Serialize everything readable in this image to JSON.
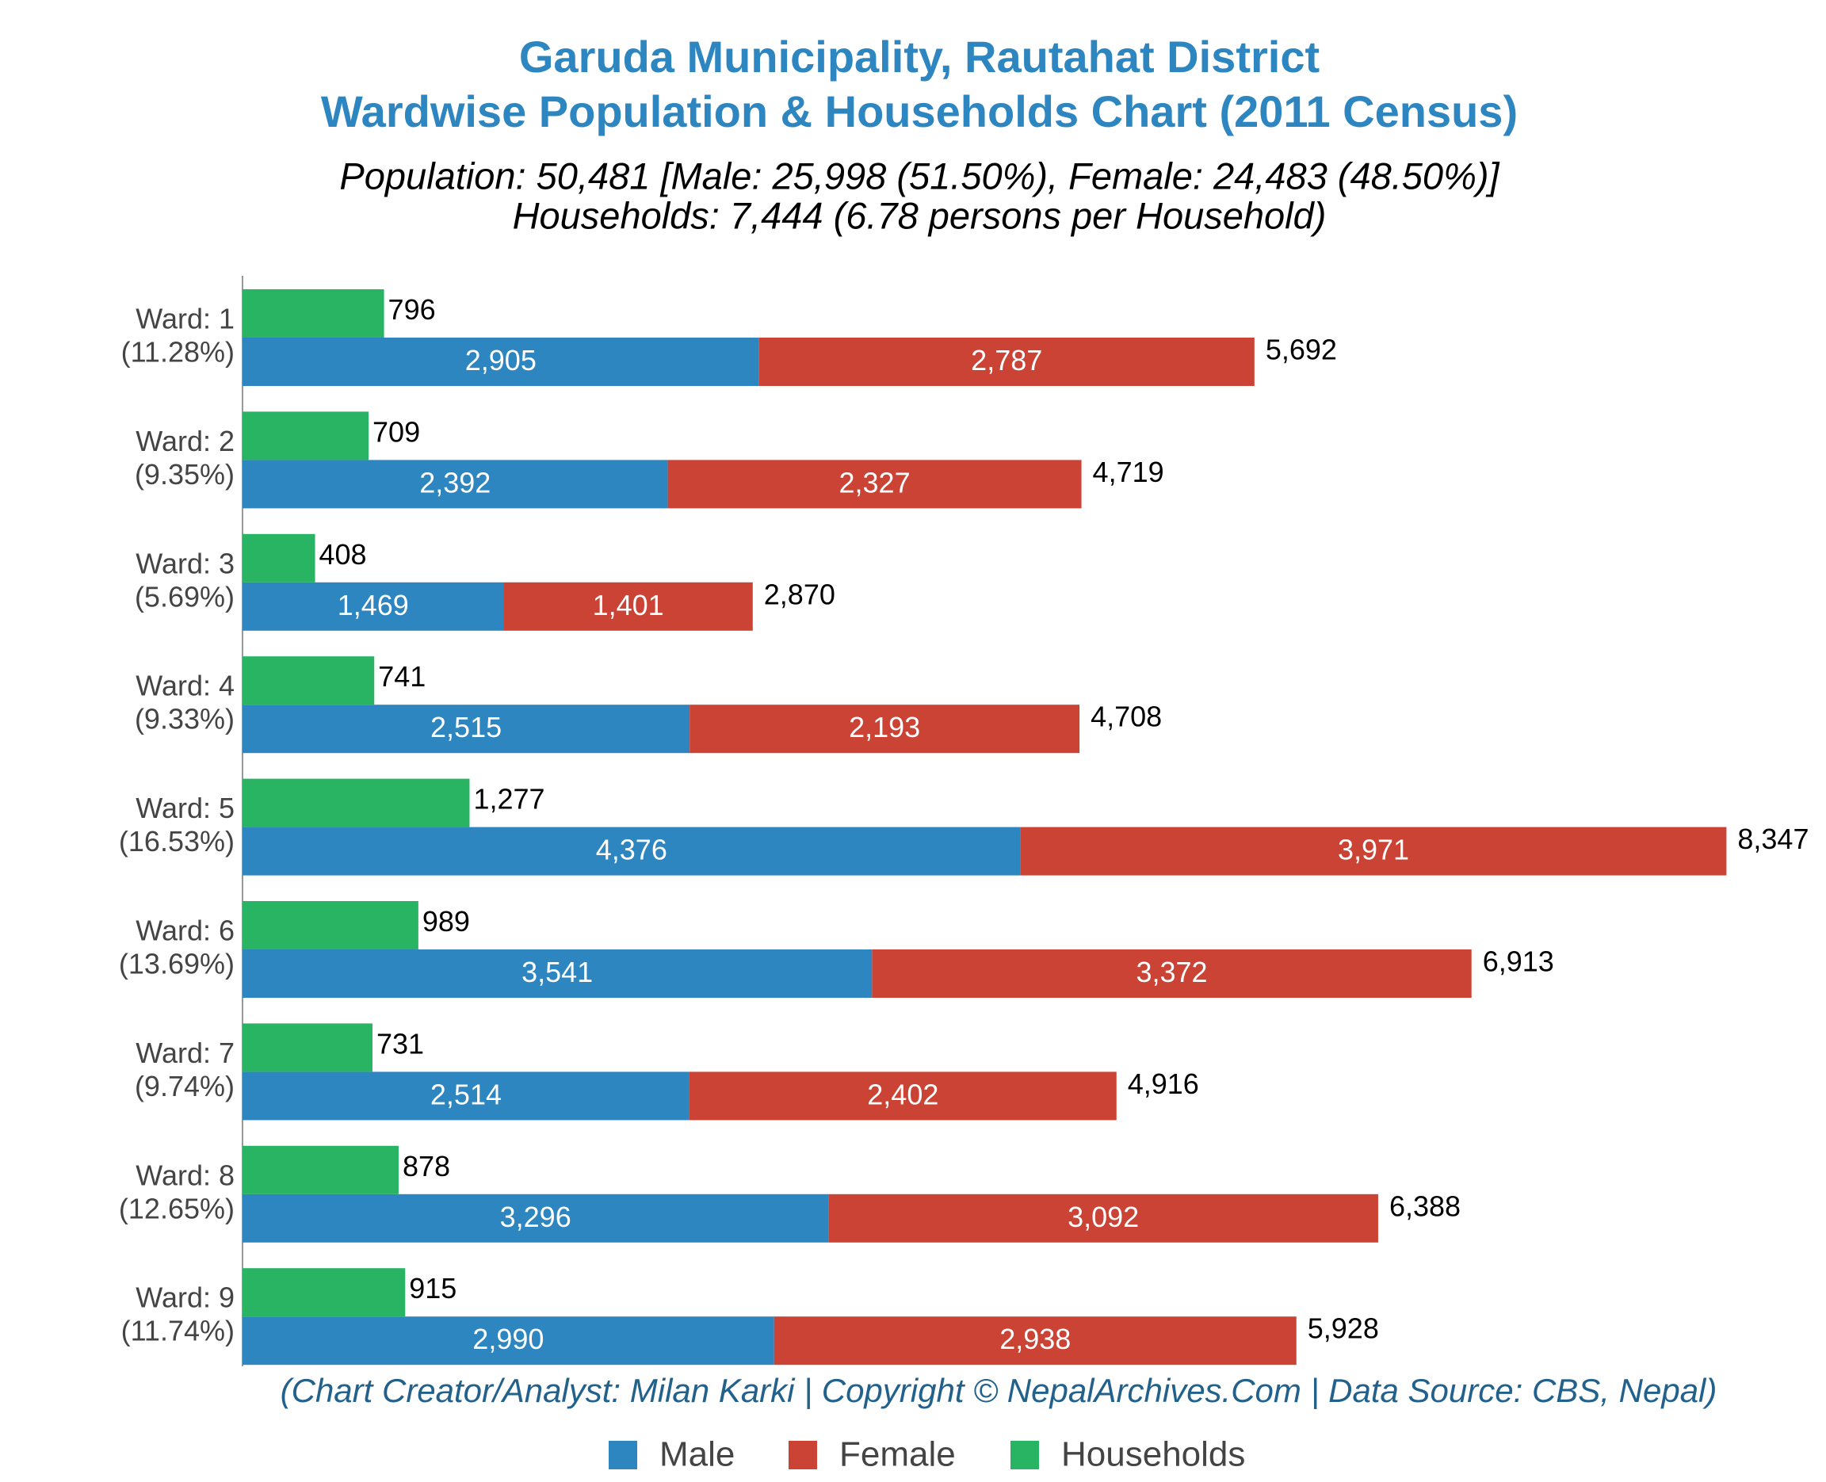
{
  "chart_data": {
    "type": "bar",
    "orientation": "horizontal",
    "title": [
      "Garuda Municipality, Rautahat District",
      "Wardwise Population & Households Chart (2011 Census)"
    ],
    "subtitle": [
      "Population: 50,481 [Male: 25,998 (51.50%), Female: 24,483 (48.50%)]",
      "Households: 7,444 (6.78 persons per Household)"
    ],
    "annotation": "(Chart Creator/Analyst: Milan Karki | Copyright © NepalArchives.Com | Data Source: CBS, Nepal)",
    "categories": [
      "Ward: 1",
      "Ward: 2",
      "Ward: 3",
      "Ward: 4",
      "Ward: 5",
      "Ward: 6",
      "Ward: 7",
      "Ward: 8",
      "Ward: 9"
    ],
    "category_sublabels": [
      "(11.28%)",
      "(9.35%)",
      "(5.69%)",
      "(9.33%)",
      "(16.53%)",
      "(13.69%)",
      "(9.74%)",
      "(12.65%)",
      "(11.74%)"
    ],
    "series": [
      {
        "name": "Male",
        "color": "#2e86c1",
        "stack": "population",
        "values": [
          2905,
          2392,
          1469,
          2515,
          4376,
          3541,
          2514,
          3296,
          2990
        ],
        "value_labels": [
          "2,905",
          "2,392",
          "1,469",
          "2,515",
          "4,376",
          "3,541",
          "2,514",
          "3,296",
          "2,990"
        ]
      },
      {
        "name": "Female",
        "color": "#cb4335",
        "stack": "population",
        "values": [
          2787,
          2327,
          1401,
          2193,
          3971,
          3372,
          2402,
          3092,
          2938
        ],
        "value_labels": [
          "2,787",
          "2,327",
          "1,401",
          "2,193",
          "3,971",
          "3,372",
          "2,402",
          "3,092",
          "2,938"
        ]
      },
      {
        "name": "Households",
        "color": "#28b463",
        "stack": "households",
        "values": [
          796,
          709,
          408,
          741,
          1277,
          989,
          731,
          878,
          915
        ],
        "value_labels": [
          "796",
          "709",
          "408",
          "741",
          "1,277",
          "989",
          "731",
          "878",
          "915"
        ]
      }
    ],
    "totals": [
      5692,
      4719,
      2870,
      4708,
      8347,
      6913,
      4916,
      6388,
      5928
    ],
    "total_labels": [
      "5,692",
      "4,719",
      "2,870",
      "4,708",
      "8,347",
      "6,913",
      "4,916",
      "6,388",
      "5,928"
    ],
    "xlim": [
      0,
      8800
    ],
    "legend": "bottom"
  }
}
